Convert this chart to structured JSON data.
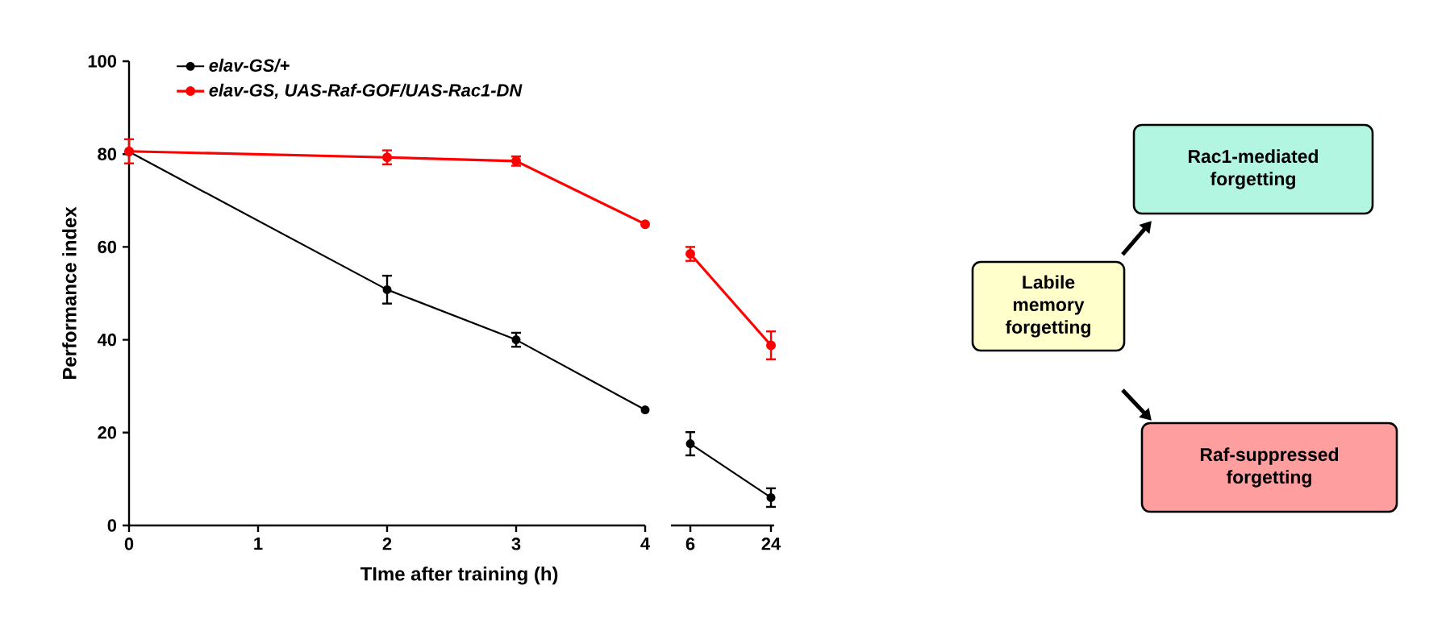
{
  "chart_data": [
    {
      "type": "line",
      "xlabel": "TIme after training (h)",
      "ylabel": "Performance index",
      "x": [
        0,
        2,
        3,
        4
      ],
      "xlim": [
        0,
        4
      ],
      "xticks": [
        0,
        1,
        2,
        3,
        4
      ],
      "ylim": [
        0,
        100
      ],
      "yticks": [
        0,
        20,
        40,
        60,
        80,
        100
      ],
      "legend": "top left",
      "marker": "circle",
      "line_style": "solid",
      "grid": false,
      "series": [
        {
          "name": "elav-GS/+",
          "color": "#000000",
          "values": [
            80.5,
            50.8,
            40,
            24.9
          ],
          "errors": [
            null,
            3,
            1.5,
            null
          ]
        },
        {
          "name": "elav-GS, UAS-Raf-GOF/UAS-Rac1-DN",
          "color": "#ff0000",
          "values": [
            80.6,
            79.3,
            78.5,
            64.9
          ],
          "errors": [
            2.6,
            1.5,
            1,
            null
          ]
        }
      ]
    },
    {
      "type": "line",
      "categories": [
        "6",
        "24"
      ],
      "ylim": [
        0,
        100
      ],
      "tick_labels": "x",
      "marker": "circle",
      "line_style": "solid",
      "grid": false,
      "series": [
        {
          "color": "#000000",
          "values": [
            17.6,
            6
          ],
          "errors": [
            2.5,
            2
          ]
        },
        {
          "color": "#ff0000",
          "values": [
            58.5,
            38.8
          ],
          "errors": [
            1.5,
            3
          ]
        }
      ]
    },
    {
      "type": "other",
      "annotations": [
        "Labile memory forgetting",
        "Rac1-mediated forgetting",
        "Raf-suppressed forgetting"
      ]
    }
  ]
}
